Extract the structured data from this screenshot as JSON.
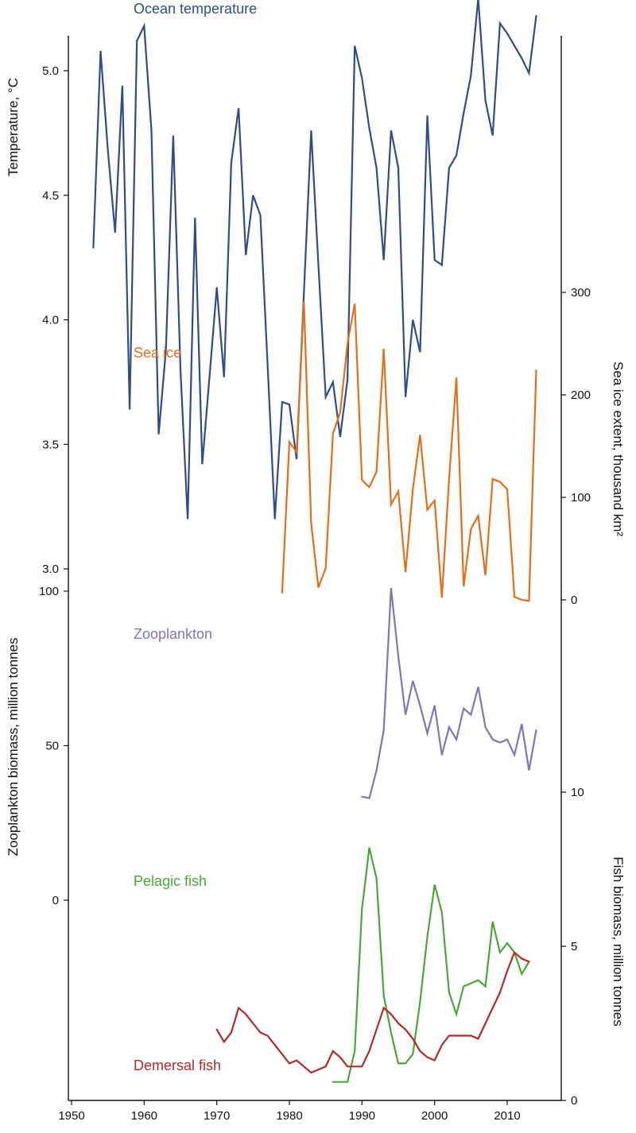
{
  "chart_data": {
    "type": "line",
    "x_axis": {
      "ticks": [
        "1950",
        "1960",
        "1970",
        "1980",
        "1990",
        "2000",
        "2010"
      ],
      "range": [
        1949,
        2016
      ]
    },
    "panels": [
      {
        "key": "temperature",
        "axis_side": "left",
        "ylabel": "Temperature, °C",
        "ticks": [
          "5.0",
          "4.5",
          "4.0",
          "3.5",
          "3.0"
        ],
        "series": [
          {
            "name": "Ocean temperature",
            "color": "#2e4d8a",
            "x": [
              1953,
              1954,
              1955,
              1956,
              1957,
              1958,
              1959,
              1960,
              1961,
              1962,
              1963,
              1964,
              1965,
              1966,
              1967,
              1968,
              1969,
              1970,
              1971,
              1972,
              1973,
              1974,
              1975,
              1976,
              1977,
              1978,
              1979,
              1980,
              1981,
              1982,
              1983,
              1984,
              1985,
              1986,
              1987,
              1988,
              1989,
              1990,
              1991,
              1992,
              1993,
              1994,
              1995,
              1996,
              1997,
              1998,
              1999,
              2000,
              2001,
              2002,
              2003,
              2004,
              2005,
              2006,
              2007,
              2008,
              2009,
              2010,
              2011,
              2012,
              2013,
              2014
            ],
            "y": [
              4.29,
              5.08,
              4.68,
              4.35,
              4.94,
              3.64,
              5.12,
              5.18,
              4.76,
              3.54,
              3.88,
              4.74,
              3.8,
              3.2,
              4.41,
              3.42,
              3.77,
              4.13,
              3.77,
              4.63,
              4.85,
              4.26,
              4.5,
              4.42,
              3.82,
              3.2,
              3.67,
              3.66,
              3.44,
              4.11,
              4.76,
              4.22,
              3.69,
              3.75,
              3.53,
              3.76,
              5.1,
              4.97,
              4.77,
              4.61,
              4.24,
              4.76,
              4.61,
              3.69,
              4.0,
              3.87,
              4.82,
              4.24,
              4.22,
              4.61,
              4.66,
              4.83,
              4.98,
              5.29,
              4.88,
              4.74,
              5.19,
              5.15,
              5.1,
              5.05,
              4.99,
              5.22
            ]
          }
        ]
      },
      {
        "key": "sea_ice",
        "axis_side": "right",
        "ylabel": "Sea ice extent, thousand km²",
        "ticks": [
          "300",
          "200",
          "100",
          "0"
        ],
        "series": [
          {
            "name": "Sea ice",
            "color": "#e0701e",
            "x": [
              1979,
              1980,
              1981,
              1982,
              1983,
              1984,
              1985,
              1986,
              1987,
              1988,
              1989,
              1990,
              1991,
              1992,
              1993,
              1994,
              1995,
              1996,
              1997,
              1998,
              1999,
              2000,
              2001,
              2002,
              2003,
              2004,
              2005,
              2006,
              2007,
              2008,
              2009,
              2010,
              2011,
              2012,
              2013,
              2014
            ],
            "y": [
              7,
              154,
              144,
              291,
              75,
              12,
              31,
              162,
              183,
              250,
              289,
              117,
              110,
              125,
              245,
              93,
              106,
              27,
              108,
              161,
              88,
              97,
              2,
              118,
              217,
              13,
              69,
              82,
              24,
              118,
              115,
              108,
              3,
              0,
              -1,
              224
            ]
          }
        ]
      },
      {
        "key": "zooplankton",
        "axis_side": "left",
        "ylabel": "Zooplankton biomass, million tonnes",
        "ticks": [
          "100",
          "50",
          "0"
        ],
        "series": [
          {
            "name": "Zooplankton",
            "color": "#8075b8",
            "x": [
              1990,
              1991,
              1992,
              1993,
              1994,
              1995,
              1996,
              1997,
              1998,
              1999,
              2000,
              2001,
              2002,
              2003,
              2004,
              2005,
              2006,
              2007,
              2008,
              2009,
              2010,
              2011,
              2012,
              2013,
              2014
            ],
            "y": [
              33.5,
              33,
              42,
              55,
              101,
              79,
              60,
              71,
              63,
              54,
              63,
              47,
              56,
              52,
              62,
              60,
              69,
              56,
              52,
              51,
              52,
              47,
              57,
              42,
              55
            ]
          }
        ]
      },
      {
        "key": "fish",
        "axis_side": "right",
        "ylabel": "Fish biomass, million tonnes",
        "ticks": [
          "10",
          "5",
          "0"
        ],
        "series": [
          {
            "name": "Pelagic fish",
            "color": "#4ca53a",
            "x": [
              1986,
              1987,
              1988,
              1989,
              1990,
              1991,
              1992,
              1993,
              1994,
              1995,
              1996,
              1997,
              1998,
              1999,
              2000,
              2001,
              2002,
              2003,
              2004,
              2005,
              2006,
              2007,
              2008,
              2009,
              2010,
              2011,
              2012,
              2013
            ],
            "y": [
              0.6,
              0.6,
              0.6,
              1.6,
              6.2,
              8.2,
              7.2,
              3.4,
              2.2,
              1.2,
              1.2,
              1.5,
              3.2,
              5.3,
              7.0,
              6.1,
              3.5,
              2.8,
              3.7,
              3.8,
              3.9,
              3.7,
              5.8,
              4.8,
              5.1,
              4.8,
              4.1,
              4.5
            ]
          },
          {
            "name": "Demersal fish",
            "color": "#b22a2a",
            "x": [
              1970,
              1971,
              1972,
              1973,
              1974,
              1975,
              1976,
              1977,
              1978,
              1979,
              1980,
              1981,
              1982,
              1983,
              1984,
              1985,
              1986,
              1987,
              1988,
              1989,
              1990,
              1991,
              1992,
              1993,
              1994,
              1995,
              1996,
              1997,
              1998,
              1999,
              2000,
              2001,
              2002,
              2003,
              2004,
              2005,
              2006,
              2007,
              2008,
              2009,
              2010,
              2011,
              2012,
              2013
            ],
            "y": [
              2.3,
              1.9,
              2.2,
              3.0,
              2.8,
              2.5,
              2.2,
              2.1,
              1.8,
              1.5,
              1.2,
              1.3,
              1.1,
              0.9,
              1.0,
              1.1,
              1.6,
              1.4,
              1.1,
              1.1,
              1.1,
              1.6,
              2.3,
              3.0,
              2.8,
              2.5,
              2.3,
              2.0,
              1.6,
              1.4,
              1.3,
              1.8,
              2.1,
              2.1,
              2.1,
              2.1,
              2.0,
              2.5,
              3.0,
              3.5,
              4.2,
              4.8,
              4.6,
              4.5
            ]
          }
        ]
      }
    ]
  }
}
